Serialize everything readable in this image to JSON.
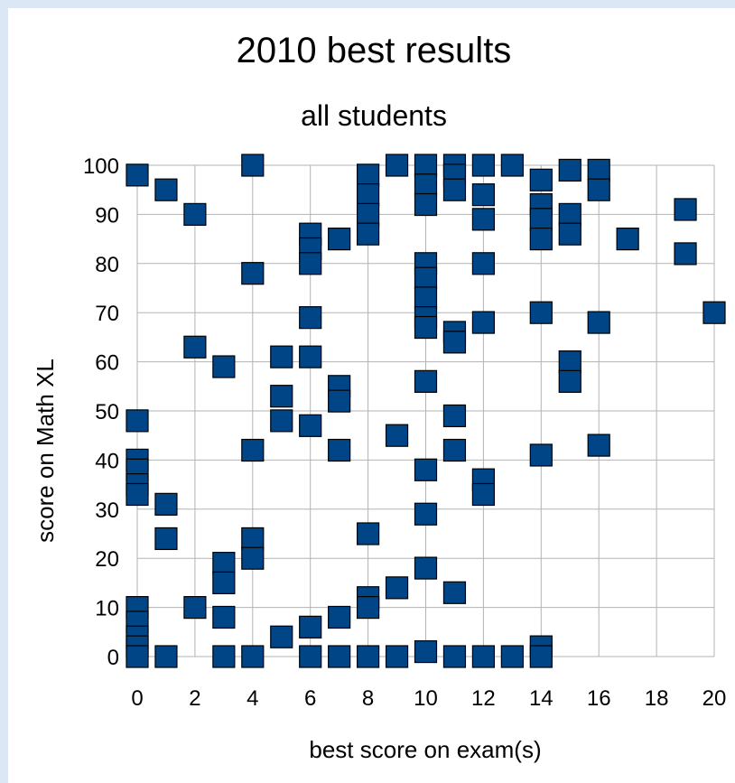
{
  "chart_data": {
    "type": "scatter",
    "title": "2010 best results",
    "subtitle": "all students",
    "xlabel": "best score on exam(s)",
    "ylabel": "score on Math XL",
    "xlim": [
      0,
      20
    ],
    "ylim": [
      0,
      100
    ],
    "xticks": [
      0,
      2,
      4,
      6,
      8,
      10,
      12,
      14,
      16,
      18,
      20
    ],
    "yticks": [
      0,
      10,
      20,
      30,
      40,
      50,
      60,
      70,
      80,
      90,
      100
    ],
    "grid": true,
    "marker": "square",
    "color": "#004586",
    "points": [
      [
        0,
        98
      ],
      [
        0,
        48
      ],
      [
        0,
        40
      ],
      [
        0,
        38
      ],
      [
        0,
        35
      ],
      [
        0,
        33
      ],
      [
        0,
        10
      ],
      [
        0,
        7
      ],
      [
        0,
        4
      ],
      [
        0,
        2
      ],
      [
        0,
        0
      ],
      [
        1,
        95
      ],
      [
        1,
        31
      ],
      [
        1,
        24
      ],
      [
        1,
        0
      ],
      [
        2,
        90
      ],
      [
        2,
        63
      ],
      [
        2,
        10
      ],
      [
        3,
        59
      ],
      [
        3,
        19
      ],
      [
        3,
        15
      ],
      [
        3,
        8
      ],
      [
        3,
        0
      ],
      [
        4,
        100
      ],
      [
        4,
        78
      ],
      [
        4,
        42
      ],
      [
        4,
        24
      ],
      [
        4,
        20
      ],
      [
        4,
        0
      ],
      [
        5,
        61
      ],
      [
        5,
        53
      ],
      [
        5,
        48
      ],
      [
        5,
        4
      ],
      [
        6,
        86
      ],
      [
        6,
        83
      ],
      [
        6,
        80
      ],
      [
        6,
        69
      ],
      [
        6,
        61
      ],
      [
        6,
        47
      ],
      [
        6,
        6
      ],
      [
        6,
        0
      ],
      [
        7,
        85
      ],
      [
        7,
        55
      ],
      [
        7,
        52
      ],
      [
        7,
        42
      ],
      [
        7,
        8
      ],
      [
        7,
        0
      ],
      [
        8,
        98
      ],
      [
        8,
        94
      ],
      [
        8,
        90
      ],
      [
        8,
        86
      ],
      [
        8,
        25
      ],
      [
        8,
        12
      ],
      [
        8,
        10
      ],
      [
        8,
        0
      ],
      [
        9,
        100
      ],
      [
        9,
        45
      ],
      [
        9,
        14
      ],
      [
        9,
        0
      ],
      [
        10,
        100
      ],
      [
        10,
        96
      ],
      [
        10,
        92
      ],
      [
        10,
        80
      ],
      [
        10,
        77
      ],
      [
        10,
        73
      ],
      [
        10,
        69
      ],
      [
        10,
        67
      ],
      [
        10,
        56
      ],
      [
        10,
        38
      ],
      [
        10,
        29
      ],
      [
        10,
        18
      ],
      [
        10,
        1
      ],
      [
        11,
        100
      ],
      [
        11,
        98
      ],
      [
        11,
        95
      ],
      [
        11,
        66
      ],
      [
        11,
        64
      ],
      [
        11,
        49
      ],
      [
        11,
        42
      ],
      [
        11,
        13
      ],
      [
        11,
        0
      ],
      [
        12,
        100
      ],
      [
        12,
        94
      ],
      [
        12,
        89
      ],
      [
        12,
        80
      ],
      [
        12,
        68
      ],
      [
        12,
        36
      ],
      [
        12,
        33
      ],
      [
        12,
        0
      ],
      [
        13,
        100
      ],
      [
        13,
        0
      ],
      [
        14,
        97
      ],
      [
        14,
        92
      ],
      [
        14,
        89
      ],
      [
        14,
        85
      ],
      [
        14,
        70
      ],
      [
        14,
        41
      ],
      [
        14,
        2
      ],
      [
        14,
        0
      ],
      [
        15,
        99
      ],
      [
        15,
        90
      ],
      [
        15,
        86
      ],
      [
        15,
        60
      ],
      [
        15,
        56
      ],
      [
        16,
        99
      ],
      [
        16,
        95
      ],
      [
        16,
        68
      ],
      [
        16,
        43
      ],
      [
        17,
        85
      ],
      [
        19,
        91
      ],
      [
        19,
        82
      ],
      [
        20,
        70
      ]
    ]
  }
}
